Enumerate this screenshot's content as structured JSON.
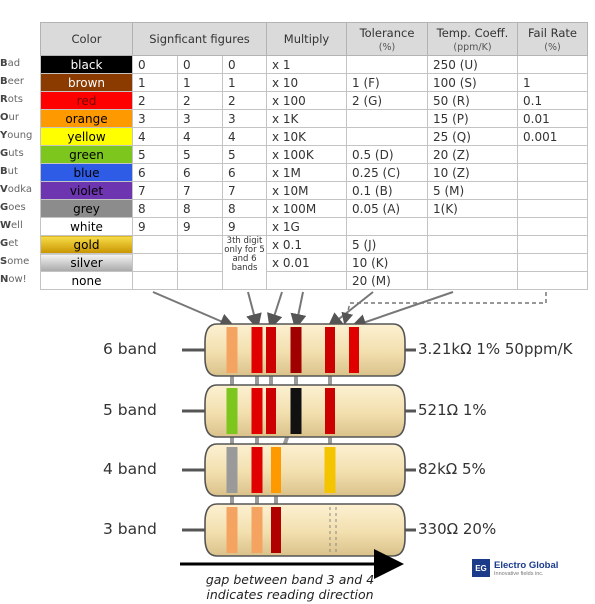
{
  "table": {
    "headers": {
      "color": "Color",
      "figures": "Signficant figures",
      "multiply": "Multiply",
      "tolerance": "Tolerance",
      "tolerance_unit": "(%)",
      "temp": "Temp. Coeff.",
      "temp_unit": "(ppm/K)",
      "fail": "Fail Rate",
      "fail_unit": "(%)"
    },
    "rows": [
      {
        "mnemonic_first": "B",
        "mnemonic_rest": "ad",
        "color": "black",
        "bg": "#000000",
        "fg": "#ffffff",
        "d1": "0",
        "d2": "0",
        "d3": "0",
        "mult": "x 1",
        "tol": "",
        "temp": "250 (U)",
        "fail": ""
      },
      {
        "mnemonic_first": "B",
        "mnemonic_rest": "eer",
        "color": "brown",
        "bg": "#8b3a00",
        "fg": "#ffffff",
        "d1": "1",
        "d2": "1",
        "d3": "1",
        "mult": "x 10",
        "tol": "1 (F)",
        "temp": "100 (S)",
        "fail": "1"
      },
      {
        "mnemonic_first": "R",
        "mnemonic_rest": "ots",
        "color": "red",
        "bg": "#ff0000",
        "fg": "#7a0000",
        "d1": "2",
        "d2": "2",
        "d3": "2",
        "mult": "x 100",
        "tol": "2 (G)",
        "temp": "50 (R)",
        "fail": "0.1"
      },
      {
        "mnemonic_first": "O",
        "mnemonic_rest": "ur",
        "color": "orange",
        "bg": "#ff9900",
        "fg": "#000000",
        "d1": "3",
        "d2": "3",
        "d3": "3",
        "mult": "x 1K",
        "tol": "",
        "temp": "15 (P)",
        "fail": "0.01"
      },
      {
        "mnemonic_first": "Y",
        "mnemonic_rest": "oung",
        "color": "yellow",
        "bg": "#ffff00",
        "fg": "#000000",
        "d1": "4",
        "d2": "4",
        "d3": "4",
        "mult": "x 10K",
        "tol": "",
        "temp": "25 (Q)",
        "fail": "0.001"
      },
      {
        "mnemonic_first": "G",
        "mnemonic_rest": "uts",
        "color": "green",
        "bg": "#7dc61e",
        "fg": "#000000",
        "d1": "5",
        "d2": "5",
        "d3": "5",
        "mult": "x 100K",
        "tol": "0.5 (D)",
        "temp": "20 (Z)",
        "fail": ""
      },
      {
        "mnemonic_first": "B",
        "mnemonic_rest": "ut",
        "color": "blue",
        "bg": "#2f5ce6",
        "fg": "#000000",
        "d1": "6",
        "d2": "6",
        "d3": "6",
        "mult": "x 1M",
        "tol": "0.25 (C)",
        "temp": "10 (Z)",
        "fail": ""
      },
      {
        "mnemonic_first": "V",
        "mnemonic_rest": "odka",
        "color": "violet",
        "bg": "#6d35b0",
        "fg": "#000000",
        "d1": "7",
        "d2": "7",
        "d3": "7",
        "mult": "x 10M",
        "tol": "0.1 (B)",
        "temp": "5 (M)",
        "fail": ""
      },
      {
        "mnemonic_first": "G",
        "mnemonic_rest": "oes",
        "color": "grey",
        "bg": "#8c8c8c",
        "fg": "#000000",
        "d1": "8",
        "d2": "8",
        "d3": "8",
        "mult": "x 100M",
        "tol": "0.05 (A)",
        "temp": "1(K)",
        "fail": ""
      },
      {
        "mnemonic_first": "W",
        "mnemonic_rest": "ell",
        "color": "white",
        "bg": "#ffffff",
        "fg": "#000000",
        "d1": "9",
        "d2": "9",
        "d3": "9",
        "mult": "x 1G",
        "tol": "",
        "temp": "",
        "fail": ""
      },
      {
        "mnemonic_first": "G",
        "mnemonic_rest": "et",
        "color": "gold",
        "bg": "#e8b800",
        "fg": "#000000",
        "d1": "",
        "d2": "",
        "d3": "",
        "mult": "x 0.1",
        "tol": "5 (J)",
        "temp": "",
        "fail": ""
      },
      {
        "mnemonic_first": "S",
        "mnemonic_rest": "ome",
        "color": "silver",
        "bg": "#d4d4d4",
        "fg": "#000000",
        "d1": "",
        "d2": "",
        "d3": "",
        "mult": "x 0.01",
        "tol": "10 (K)",
        "temp": "",
        "fail": ""
      },
      {
        "mnemonic_first": "N",
        "mnemonic_rest": "ow!",
        "color": "none",
        "bg": "#ffffff",
        "fg": "#000000",
        "d1": "",
        "d2": "",
        "d3": "",
        "mult": "",
        "tol": "20 (M)",
        "temp": "",
        "fail": ""
      }
    ],
    "third_digit_note": "3th digit only for 5 and 6 bands"
  },
  "resistors": [
    {
      "label": "6 band",
      "value": "3.21kΩ 1% 50ppm/K",
      "bands": [
        "#f4a460",
        "#e00000",
        "#cc0000",
        "#a00000",
        "#cc0000",
        "#e00000"
      ]
    },
    {
      "label": "5 band",
      "value": "521Ω 1%",
      "bands": [
        "#7dc61e",
        "#e00000",
        "#cc0000",
        "#111111",
        "#cc0000"
      ]
    },
    {
      "label": "4 band",
      "value": "82kΩ 5%",
      "bands": [
        "#9a9a9a",
        "#e00000",
        "#ff9900",
        "#f5c400"
      ]
    },
    {
      "label": "3 band",
      "value": "330Ω 20%",
      "bands": [
        "#f4a460",
        "#f4a460",
        "#b00000"
      ]
    }
  ],
  "caption": {
    "line1": "gap between band 3 and 4",
    "line2": "indicates reading direction"
  },
  "logo": {
    "mark": "EG",
    "name": "Electro Global",
    "tagline": "Innovative fields inc."
  }
}
